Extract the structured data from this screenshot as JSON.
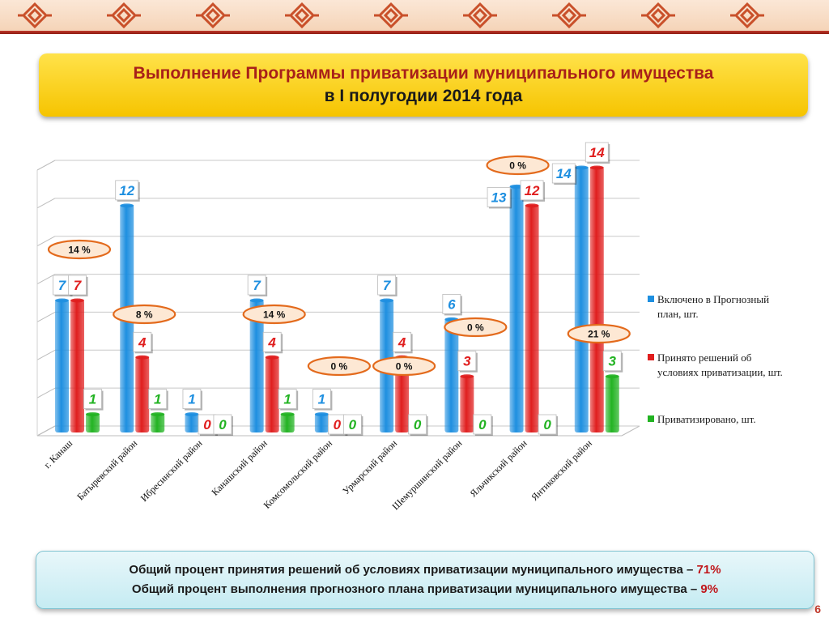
{
  "slide": {
    "title_line1": "Выполнение Программы приватизации муниципального имущества",
    "title_line2": "в  I полугодии 2014 года",
    "footer_line1_text": "Общий процент принятия решений об условиях приватизации муниципального имущества – ",
    "footer_line1_value": "71%",
    "footer_line2_text": "Общий процент выполнения прогнозного плана приватизации муниципального имущества – ",
    "footer_line2_value": "9%",
    "page_number": "6"
  },
  "chart_data": {
    "type": "bar",
    "categories": [
      "г. Канаш",
      "Батыревский  район",
      "Ибресинский район",
      "Канашский район",
      "Комсомольский  район",
      "Урмарский район",
      "Шемуршинский  район",
      "Яльчикский район",
      "Янтиковский район"
    ],
    "series": [
      {
        "name": "Включено в Прогнозный план, шт.",
        "values": [
          7,
          12,
          1,
          7,
          1,
          7,
          6,
          13,
          14
        ],
        "color": "#1e8fe0"
      },
      {
        "name": "Принято решений об условиях приватизации, шт.",
        "values": [
          7,
          4,
          0,
          4,
          0,
          4,
          3,
          12,
          14
        ],
        "color": "#e01e1e"
      },
      {
        "name": "Приватизировано, шт.",
        "values": [
          1,
          1,
          0,
          1,
          0,
          0,
          0,
          0,
          3
        ],
        "color": "#22b322"
      }
    ],
    "percent_labels": [
      "14 %",
      "8 %",
      "",
      "14 %",
      "0 %",
      "0 %",
      "0 %",
      "0 %",
      "21 %"
    ],
    "ylim": [
      0,
      14
    ],
    "grid": true,
    "legend_position": "right"
  }
}
